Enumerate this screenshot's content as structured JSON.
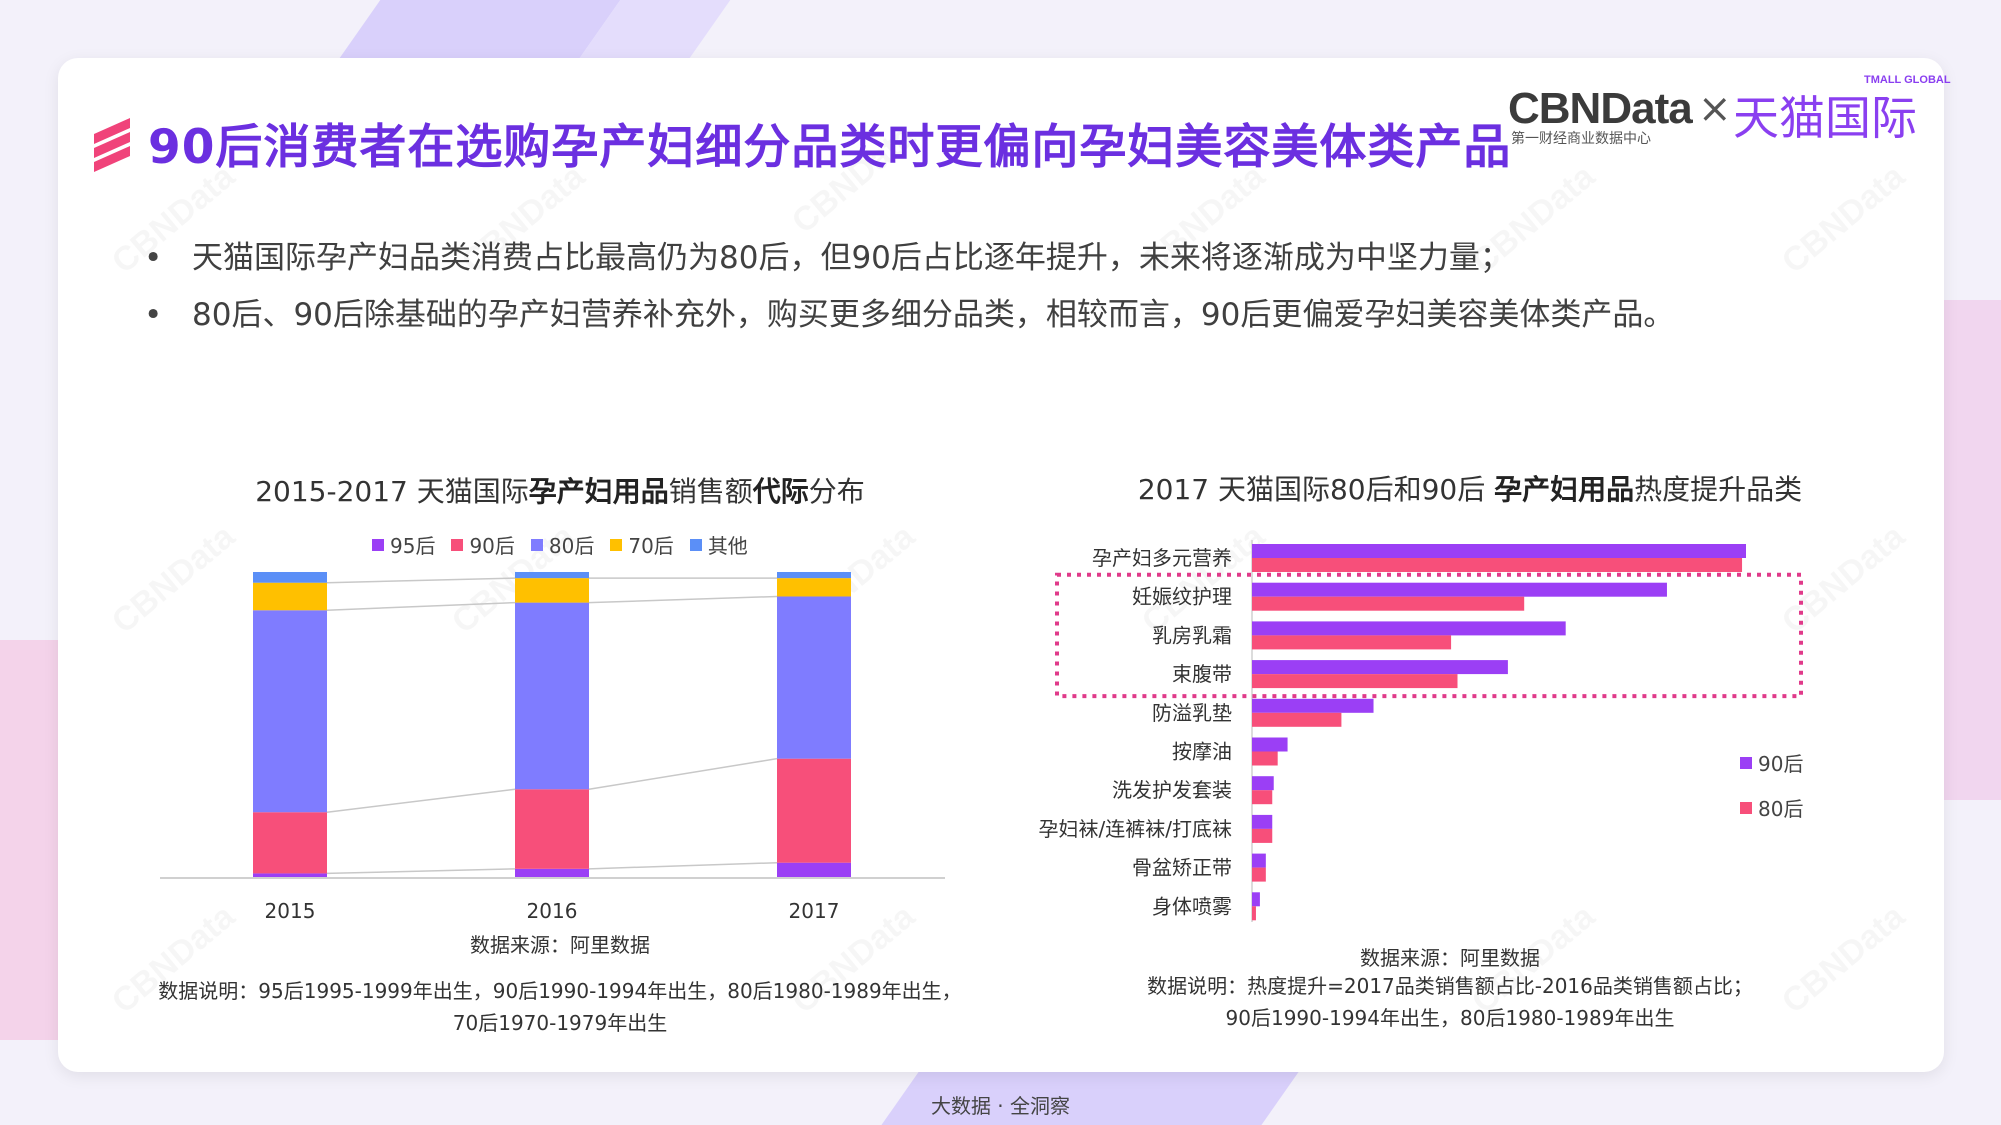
{
  "header": {
    "title": "90后消费者在选购孕产妇细分品类时更偏向孕妇美容美体类产品"
  },
  "logo": {
    "cbn": "CBNData",
    "cbn_sub": "第一财经商业数据中心",
    "times": "×",
    "tmall": "天猫国际",
    "tmall_sub": "TMALL GLOBAL"
  },
  "watermark": "CBNData",
  "bullets": [
    "天猫国际孕产妇品类消费占比最高仍为80后，但90后占比逐年提升，未来将逐渐成为中坚力量；",
    "80后、90后除基础的孕产妇营养补充外，购买更多细分品类，相较而言，90后更偏爱孕妇美容美体类产品。"
  ],
  "chart_left_title": {
    "part1": "2015-2017 天猫国际",
    "bold1": "孕产妇用品",
    "part2": "销售额",
    "bold2": "代际",
    "part3": "分布"
  },
  "chart_right_title": {
    "part1": "2017 天猫国际80后和90后 ",
    "bold1": "孕产妇用品",
    "part2": "热度提升品类"
  },
  "chart_data": [
    {
      "type": "bar",
      "stacked": true,
      "title": "2015-2017 天猫国际孕产妇用品销售额代际分布",
      "categories": [
        "2015",
        "2016",
        "2017"
      ],
      "series": [
        {
          "name": "95后",
          "color": "#9b3ff5",
          "values": [
            1.5,
            3,
            5
          ]
        },
        {
          "name": "90后",
          "color": "#f74f7a",
          "values": [
            20,
            26,
            34
          ]
        },
        {
          "name": "80后",
          "color": "#7f7cff",
          "values": [
            66,
            61,
            53
          ]
        },
        {
          "name": "70后",
          "color": "#ffc000",
          "values": [
            9,
            8,
            6
          ]
        },
        {
          "name": "其他",
          "color": "#5b8ff7",
          "values": [
            3.5,
            2,
            2
          ]
        }
      ],
      "ylim": [
        0,
        100
      ],
      "legend": "top",
      "grid": false
    },
    {
      "type": "bar",
      "orientation": "horizontal",
      "title": "2017 天猫国际80后和90后 孕产妇用品热度提升品类",
      "categories": [
        "孕产妇多元营养",
        "妊娠纹护理",
        "乳房乳霜",
        "束腹带",
        "防溢乳垫",
        "按摩油",
        "洗发护发套装",
        "孕妇袜/连裤袜/打底袜",
        "骨盆矫正带",
        "身体喷雾"
      ],
      "series": [
        {
          "name": "90后",
          "color": "#9b3ff5",
          "values": [
            100,
            84,
            63.5,
            51.8,
            24.6,
            7.2,
            4.4,
            4.1,
            2.8,
            1.6
          ]
        },
        {
          "name": "80后",
          "color": "#f74f7a",
          "values": [
            99.2,
            55.1,
            40.3,
            41.6,
            18.1,
            5.2,
            4.1,
            4.1,
            2.8,
            0.8
          ]
        }
      ],
      "highlight": [
        "妊娠纹护理",
        "乳房乳霜",
        "束腹带"
      ],
      "legend": "right",
      "grid": false
    }
  ],
  "legend_left": [
    {
      "label": "95后",
      "color": "#9b3ff5"
    },
    {
      "label": "90后",
      "color": "#f74f7a"
    },
    {
      "label": "80后",
      "color": "#7f7cff"
    },
    {
      "label": "70后",
      "color": "#ffc000"
    },
    {
      "label": "其他",
      "color": "#5b8ff7"
    }
  ],
  "legend_right": [
    {
      "label": "90后",
      "color": "#9b3ff5"
    },
    {
      "label": "80后",
      "color": "#f74f7a"
    }
  ],
  "notes": {
    "left_source": "数据来源：阿里数据",
    "left_line1": "数据说明：95后1995-1999年出生，90后1990-1994年出生，80后1980-1989年出生，",
    "left_line2": "70后1970-1979年出生",
    "right_source": "数据来源：阿里数据",
    "right_line1": "数据说明：热度提升=2017品类销售额占比-2016品类销售额占比；",
    "right_line2": "90后1990-1994年出生，80后1980-1989年出生"
  },
  "footer": "大数据 · 全洞察",
  "colors": {
    "accent": "#6b2fe0",
    "pink": "#f0437a",
    "dash": "#e03a8a"
  }
}
